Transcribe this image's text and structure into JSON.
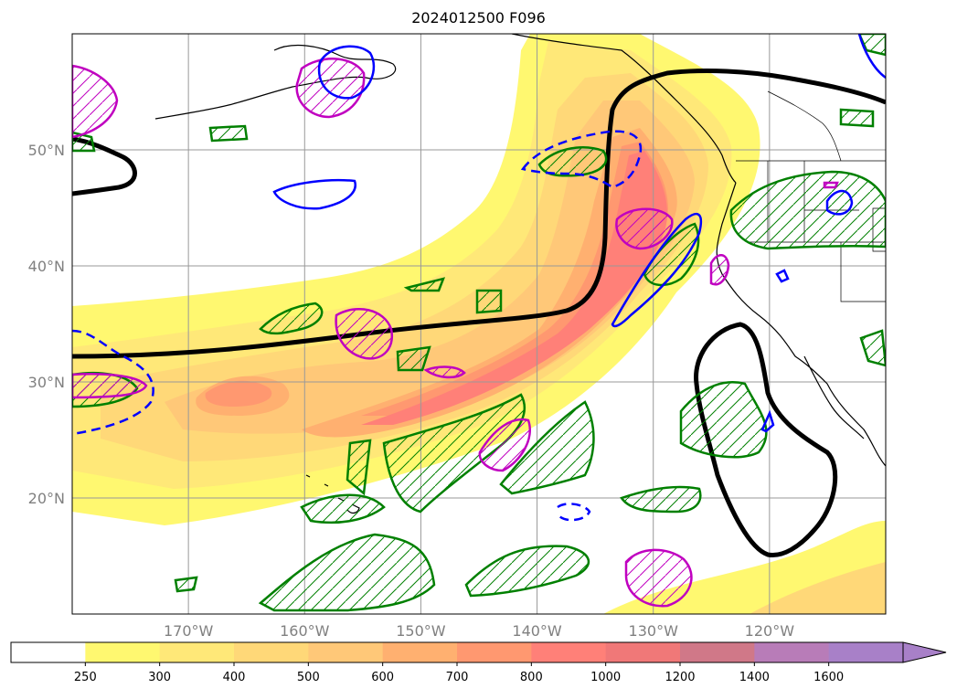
{
  "title": "2024012500 F096",
  "map": {
    "lon_range": [
      -180,
      -110
    ],
    "lat_range": [
      10,
      60
    ],
    "lon_ticks": [
      {
        "value": -170,
        "label": "170°W"
      },
      {
        "value": -160,
        "label": "160°W"
      },
      {
        "value": -150,
        "label": "150°W"
      },
      {
        "value": -140,
        "label": "140°W"
      },
      {
        "value": -130,
        "label": "130°W"
      },
      {
        "value": -120,
        "label": "120°W"
      }
    ],
    "lat_ticks": [
      {
        "value": 20,
        "label": "20°N"
      },
      {
        "value": 30,
        "label": "30°N"
      },
      {
        "value": 40,
        "label": "40°N"
      },
      {
        "value": 50,
        "label": "50°N"
      }
    ],
    "gridlines": true
  },
  "colorbar": {
    "levels": [
      "250",
      "300",
      "400",
      "500",
      "600",
      "700",
      "800",
      "1000",
      "1200",
      "1400",
      "1600"
    ],
    "colors": [
      "#ffffff",
      "#fff870",
      "#ffe878",
      "#ffd878",
      "#ffc878",
      "#ffb070",
      "#ff9870",
      "#ff8078",
      "#f07878",
      "#d07888",
      "#b87cb8",
      "#a880c8"
    ],
    "extend": "max"
  },
  "colors": {
    "black_contour": "#000000",
    "green_contour": "#008000",
    "magenta_contour": "#c000c0",
    "blue_contour": "#0000ff"
  }
}
